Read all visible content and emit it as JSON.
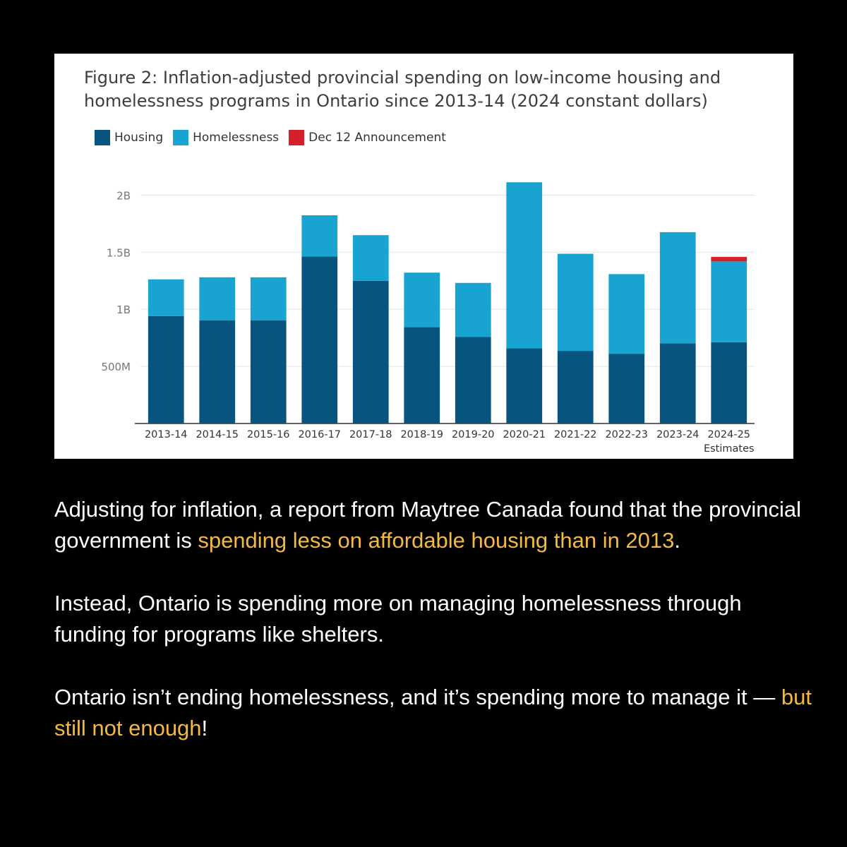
{
  "colors": {
    "housing": "#07557f",
    "homelessness": "#19a3d1",
    "announcement": "#d3202a",
    "highlight": "#f4b942"
  },
  "chart_data": {
    "type": "bar",
    "stacked": true,
    "title": "Figure 2: Inflation-adjusted provincial spending on low-income housing and homelessness programs in Ontario since 2013-14 (2024 constant dollars)",
    "categories": [
      "2013-14",
      "2014-15",
      "2015-16",
      "2016-17",
      "2017-18",
      "2018-19",
      "2019-20",
      "2020-21",
      "2021-22",
      "2022-23",
      "2023-24",
      "2024-25"
    ],
    "category_sublabels": [
      "",
      "",
      "",
      "",
      "",
      "",
      "",
      "",
      "",
      "",
      "",
      "Estimates"
    ],
    "series": [
      {
        "name": "Housing",
        "color": "#07557f",
        "values": [
          941,
          902,
          902,
          1462,
          1249,
          843,
          757,
          659,
          636,
          611,
          701,
          712
        ]
      },
      {
        "name": "Homelessness",
        "color": "#19a3d1",
        "values": [
          321,
          378,
          378,
          361,
          400,
          478,
          474,
          1453,
          850,
          697,
          974,
          707
        ]
      },
      {
        "name": "Dec 12 Announcement",
        "color": "#d3202a",
        "values": [
          0,
          0,
          0,
          0,
          0,
          0,
          0,
          0,
          0,
          0,
          0,
          40
        ]
      }
    ],
    "y_unit": "millions of 2024 dollars",
    "ylim": [
      0,
      2200
    ],
    "yticks": [
      {
        "value": 500,
        "label": "500M"
      },
      {
        "value": 1000,
        "label": "1B"
      },
      {
        "value": 1500,
        "label": "1.5B"
      },
      {
        "value": 2000,
        "label": "2B"
      }
    ],
    "grid": true,
    "legend_position": "top-left"
  },
  "caption": {
    "p1_a": "Adjusting for inflation, a report from Maytree Canada found that the provincial government is ",
    "p1_hl": "spending less on affordable housing than in 2013",
    "p1_b": ".",
    "p2": "Instead, Ontario is spending more on managing homelessness through funding for programs like shelters.",
    "p3_a": "Ontario isn’t ending homelessness, and it’s spending more to manage it — ",
    "p3_hl": "but still not enough",
    "p3_b": "!"
  }
}
